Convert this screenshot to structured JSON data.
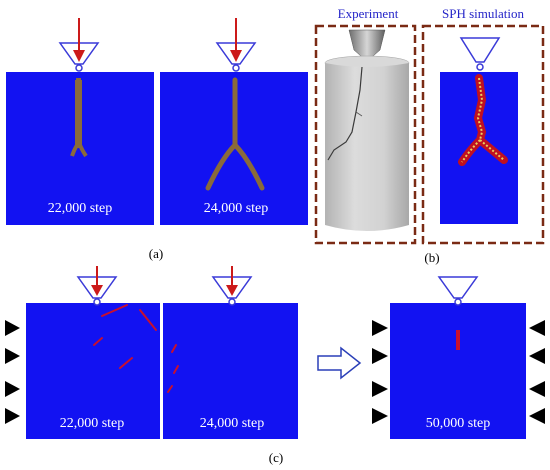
{
  "colors": {
    "field_blue": "#1212f2",
    "crack_brown": "#8a6a3a",
    "crack_red": "#c8102e",
    "frame_brown": "#7a2a14",
    "label_blue": "#2424c8",
    "indenter_outline": "#3a3ad8",
    "arrow_red": "#cc1a1a",
    "triangle_black": "#000000",
    "sample_gray": "#c9c9c9"
  },
  "panels": {
    "a": {
      "label": "(a)",
      "left_step": "22,000 step",
      "right_step": "24,000 step"
    },
    "b": {
      "label": "(b)",
      "experiment_title": "Experiment",
      "simulation_title": "SPH simulation"
    },
    "c": {
      "label": "(c)",
      "step_1": "22,000 step",
      "step_2": "24,000 step",
      "step_3": "50,000 step"
    }
  },
  "icons": {
    "indenter": "cone-indenter-icon",
    "load_arrow": "down-arrow-icon",
    "support": "black-triangle-support-icon",
    "transition": "hollow-right-arrow-icon"
  }
}
